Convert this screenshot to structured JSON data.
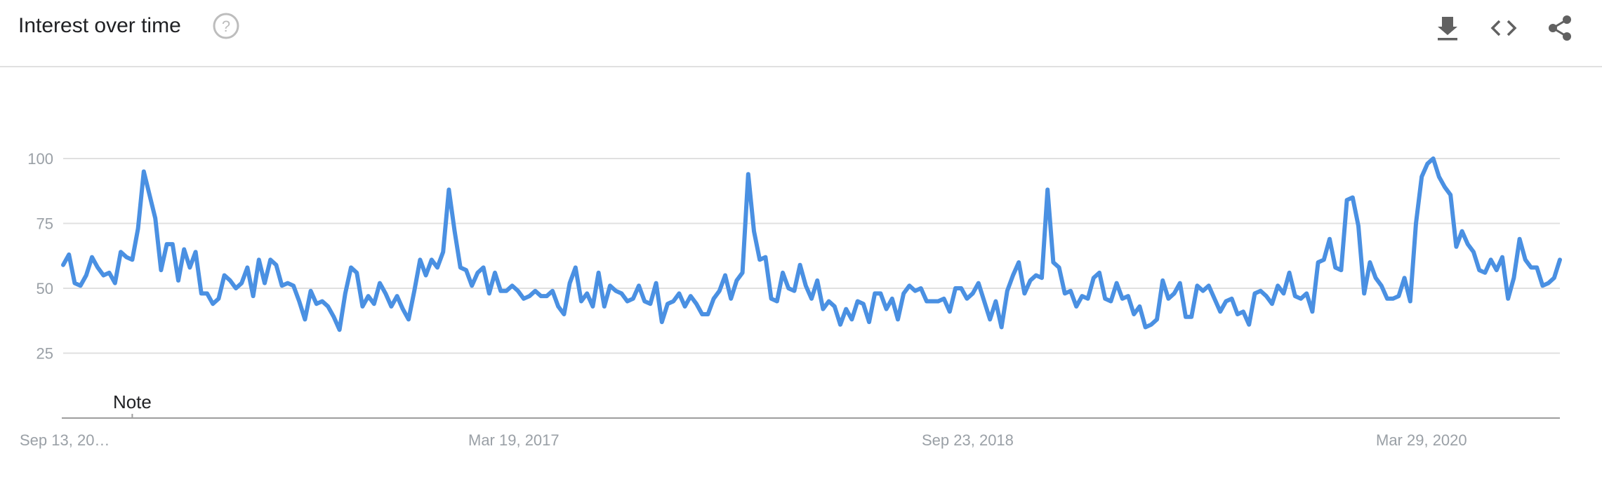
{
  "header": {
    "title": "Interest over time",
    "help_icon": "help-circle-icon",
    "actions": [
      {
        "icon": "download-icon"
      },
      {
        "icon": "embed-code-icon"
      },
      {
        "icon": "share-icon"
      }
    ]
  },
  "colors": {
    "line": "#4a90e2",
    "grid": "#e0e0e0",
    "axis": "#9e9e9e",
    "tick_text": "#9aa0a6"
  },
  "chart_data": {
    "type": "line",
    "title": "Interest over time",
    "xlabel": "",
    "ylabel": "",
    "ylim": [
      0,
      100
    ],
    "yticks": [
      25,
      50,
      75,
      100
    ],
    "grid": true,
    "x_tick_labels": [
      "Sep 13, 20…",
      "Mar 19, 2017",
      "Sep 23, 2018",
      "Mar 29, 2020"
    ],
    "x_start": "Sep 13, 2015",
    "x_interval": "week",
    "annotations": [
      {
        "label": "Note",
        "index": 12
      }
    ],
    "series": [
      {
        "values": [
          59,
          63,
          52,
          51,
          55,
          62,
          58,
          55,
          56,
          52,
          64,
          62,
          61,
          73,
          95,
          86,
          77,
          57,
          67,
          67,
          53,
          65,
          58,
          64,
          48,
          48,
          44,
          46,
          55,
          53,
          50,
          52,
          58,
          47,
          61,
          52,
          61,
          59,
          51,
          52,
          51,
          45,
          38,
          49,
          44,
          45,
          43,
          39,
          34,
          48,
          58,
          56,
          43,
          47,
          44,
          52,
          48,
          43,
          47,
          42,
          38,
          49,
          61,
          55,
          61,
          58,
          64,
          88,
          72,
          58,
          57,
          51,
          56,
          58,
          48,
          56,
          49,
          49,
          51,
          49,
          46,
          47,
          49,
          47,
          47,
          49,
          43,
          40,
          52,
          58,
          45,
          48,
          43,
          56,
          43,
          51,
          49,
          48,
          45,
          46,
          51,
          45,
          44,
          52,
          37,
          44,
          45,
          48,
          43,
          47,
          44,
          40,
          40,
          46,
          49,
          55,
          46,
          53,
          56,
          94,
          72,
          61,
          62,
          46,
          45,
          56,
          50,
          49,
          59,
          51,
          46,
          53,
          42,
          45,
          43,
          36,
          42,
          38,
          45,
          44,
          37,
          48,
          48,
          42,
          46,
          38,
          48,
          51,
          49,
          50,
          45,
          45,
          45,
          46,
          41,
          50,
          50,
          46,
          48,
          52,
          45,
          38,
          45,
          35,
          49,
          55,
          60,
          48,
          53,
          55,
          54,
          88,
          60,
          58,
          48,
          49,
          43,
          47,
          46,
          54,
          56,
          46,
          45,
          52,
          46,
          47,
          40,
          43,
          35,
          36,
          38,
          53,
          46,
          48,
          52,
          39,
          39,
          51,
          49,
          51,
          46,
          41,
          45,
          46,
          40,
          41,
          36,
          48,
          49,
          47,
          44,
          51,
          48,
          56,
          47,
          46,
          48,
          41,
          60,
          61,
          69,
          58,
          57,
          84,
          85,
          74,
          48,
          60,
          54,
          51,
          46,
          46,
          47,
          54,
          45,
          75,
          93,
          98,
          100,
          93,
          89,
          86,
          66,
          72,
          67,
          64,
          57,
          56,
          61,
          57,
          62,
          46,
          54,
          69,
          61,
          58,
          58,
          51,
          52,
          54,
          61
        ]
      }
    ]
  }
}
